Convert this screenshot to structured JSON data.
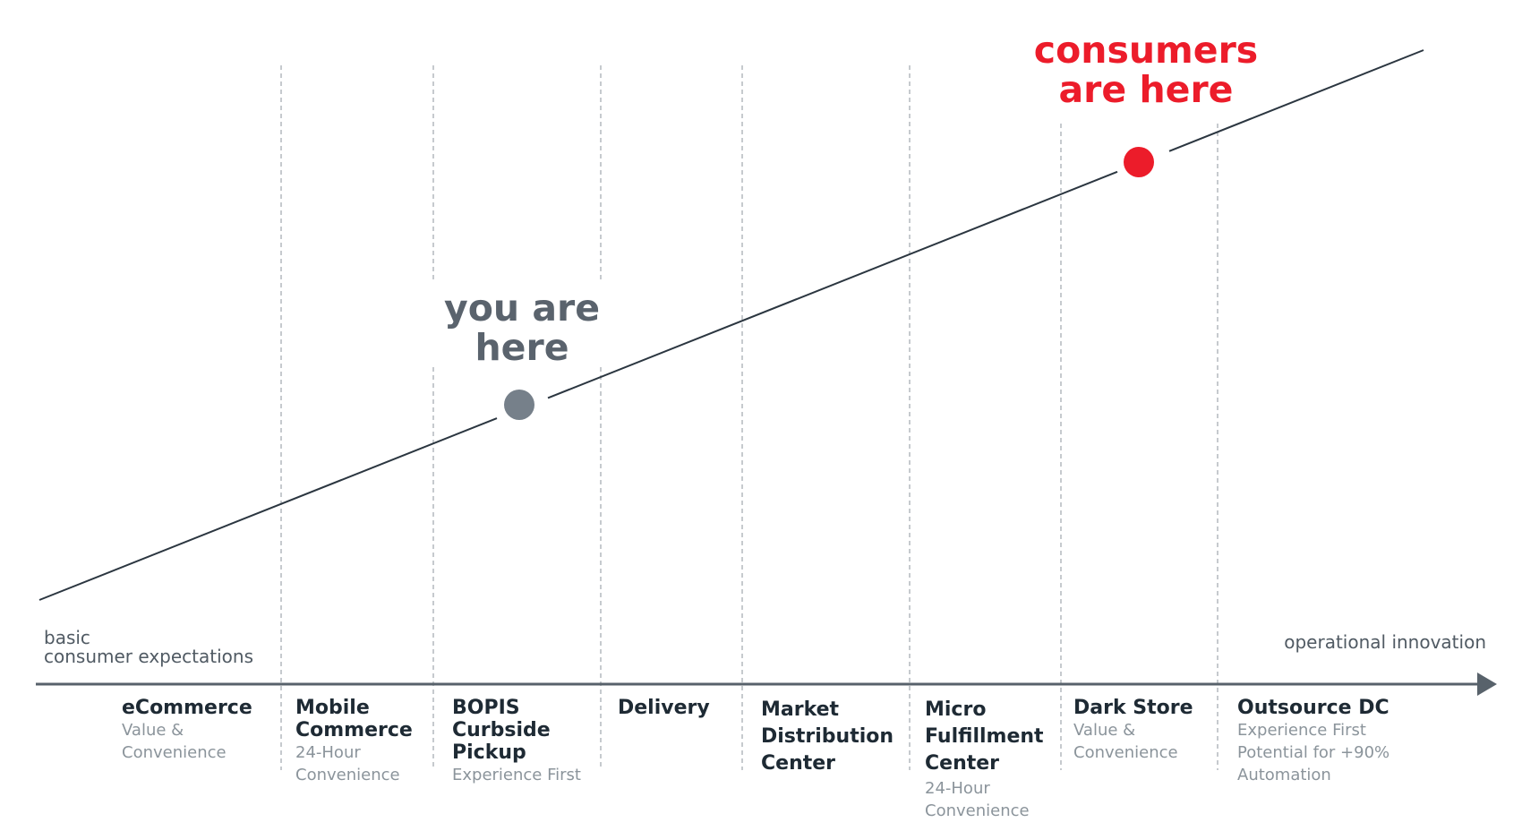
{
  "axis": {
    "left_label_line1": "basic",
    "left_label_line2": "consumer expectations",
    "right_label": "operational innovation"
  },
  "markers": {
    "you": {
      "line1": "you are",
      "line2": "here",
      "color": "#76808a",
      "stage_index": 2
    },
    "consumers": {
      "line1": "consumers",
      "line2": "are here",
      "color": "#ec1c2a",
      "stage_index": 6
    }
  },
  "stages": [
    {
      "title": [
        "eCommerce"
      ],
      "subtitle": [
        "Value &",
        "Convenience"
      ]
    },
    {
      "title": [
        "Mobile",
        "Commerce"
      ],
      "subtitle": [
        "24-Hour",
        "Convenience"
      ]
    },
    {
      "title": [
        "BOPIS",
        "Curbside",
        "Pickup"
      ],
      "subtitle": [
        "Experience First"
      ]
    },
    {
      "title": [
        "Delivery"
      ],
      "subtitle": []
    },
    {
      "title": [
        "Market",
        "Distribution",
        "Center"
      ],
      "subtitle": []
    },
    {
      "title": [
        "Micro",
        "Fulfillment",
        "Center"
      ],
      "subtitle": [
        "24-Hour",
        "Convenience"
      ]
    },
    {
      "title": [
        "Dark Store"
      ],
      "subtitle": [
        "Value &",
        "Convenience"
      ]
    },
    {
      "title": [
        "Outsource DC"
      ],
      "subtitle": [
        "Experience First",
        "Potential for +90%",
        "Automation"
      ]
    }
  ],
  "colors": {
    "trend_line": "#2b3640",
    "axis": "#58626b",
    "divider": "#b3b8bd",
    "stage_title": "#1e2a34",
    "stage_subtitle": "#8b949b"
  }
}
